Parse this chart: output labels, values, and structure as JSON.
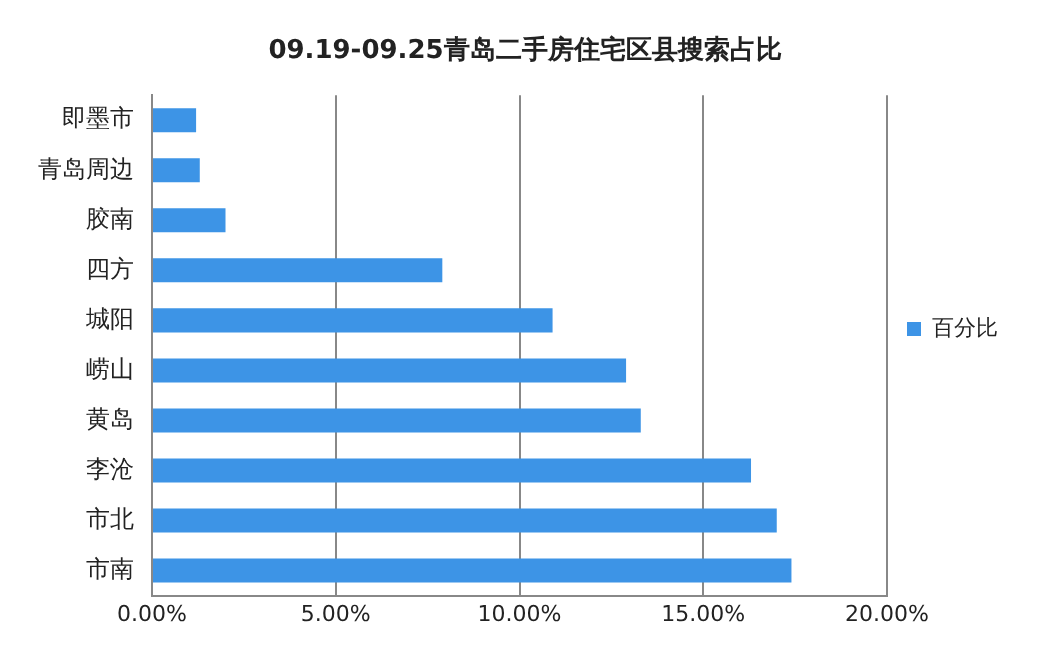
{
  "chart_data": {
    "type": "bar",
    "orientation": "horizontal",
    "title": "09.19-09.25青岛二手房住宅区县搜索占比",
    "categories": [
      "即墨市",
      "青岛周边",
      "胶南",
      "四方",
      "城阳",
      "崂山",
      "黄岛",
      "李沧",
      "市北",
      "市南"
    ],
    "series": [
      {
        "name": "百分比",
        "color": "#3d94e6",
        "values": [
          1.2,
          1.3,
          2.0,
          7.9,
          10.9,
          12.9,
          13.3,
          16.3,
          17.0,
          17.4
        ]
      }
    ],
    "xlim": [
      0,
      20
    ],
    "xticks": [
      {
        "value": 0,
        "label": "0.00%"
      },
      {
        "value": 5,
        "label": "5.00%"
      },
      {
        "value": 10,
        "label": "10.00%"
      },
      {
        "value": 15,
        "label": "15.00%"
      },
      {
        "value": 20,
        "label": "20.00%"
      }
    ],
    "grid": "x",
    "legend": "right"
  }
}
